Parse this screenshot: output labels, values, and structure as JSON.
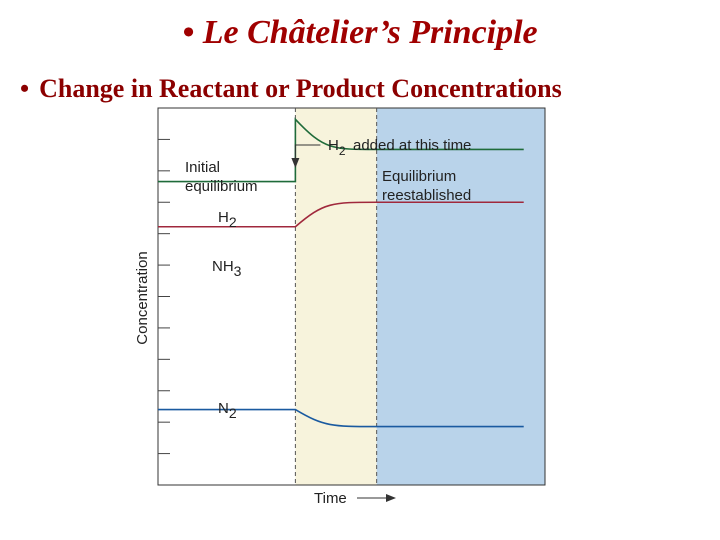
{
  "slide": {
    "title": "• Le Châtelier’s Principle",
    "bullet_marker": "•",
    "bullet": "Change in Reactant or Product Concentrations"
  },
  "chart_data": {
    "type": "line",
    "title": "",
    "xlabel": "Time",
    "ylabel": "Concentration",
    "grid": false,
    "x_ticks": [],
    "y_ticks": [],
    "x_range": [
      0,
      1
    ],
    "y_range": [
      0,
      1
    ],
    "perturbation_x": 0.355,
    "new_equilibrium_x": 0.565,
    "series": [
      {
        "name": "H2",
        "color": "#1f6b3a",
        "points": [
          [
            0.0,
            0.805
          ],
          [
            0.355,
            0.805
          ],
          [
            0.355,
            0.97
          ],
          [
            0.565,
            0.89
          ],
          [
            0.945,
            0.89
          ]
        ]
      },
      {
        "name": "NH3",
        "color": "#a0283c",
        "points": [
          [
            0.0,
            0.685
          ],
          [
            0.355,
            0.685
          ],
          [
            0.565,
            0.75
          ],
          [
            0.945,
            0.75
          ]
        ]
      },
      {
        "name": "N2",
        "color": "#1a5aa0",
        "points": [
          [
            0.0,
            0.2
          ],
          [
            0.355,
            0.2
          ],
          [
            0.565,
            0.155
          ],
          [
            0.945,
            0.155
          ]
        ]
      }
    ],
    "annotations": {
      "event": "H2 added at this time",
      "initial_1": "Initial",
      "initial_2": "equilibrium",
      "reestablished_1": "Equilibrium",
      "reestablished_2": "reestablished"
    },
    "regions": [
      {
        "name": "transition",
        "from": 0.355,
        "to": 0.565,
        "color": "#f7f3dc"
      },
      {
        "name": "new-equilibrium",
        "from": 0.565,
        "to": 1.0,
        "color": "#b9d3ea"
      }
    ]
  }
}
